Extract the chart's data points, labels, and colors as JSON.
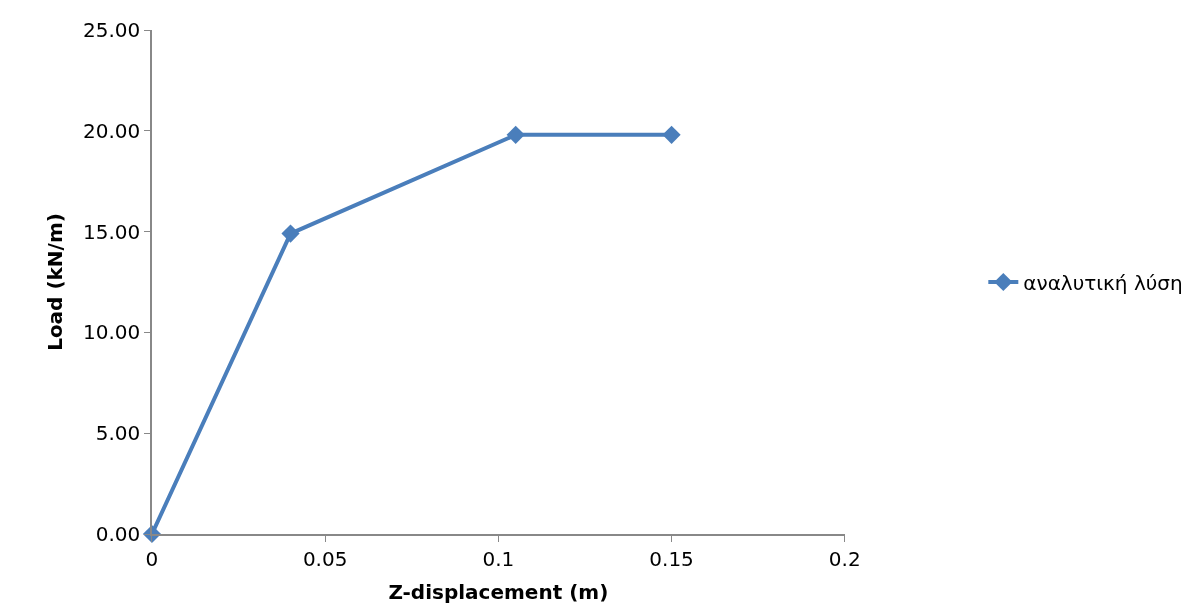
{
  "chart_data": {
    "type": "line",
    "xlabel": "Z-displacement (m)",
    "ylabel": "Load (kN/m)",
    "x": [
      0,
      0.04,
      0.105,
      0.15
    ],
    "series": [
      {
        "name": "αναλυτική λύση",
        "color": "#4a7ebb",
        "values": [
          0,
          14.9,
          19.8,
          19.8
        ]
      }
    ],
    "xlim": [
      0,
      0.2
    ],
    "xticks": [
      0,
      0.05,
      0.1,
      0.15,
      0.2
    ],
    "ylim": [
      0,
      25
    ],
    "yticks": [
      {
        "value": 0,
        "label": "0.00"
      },
      {
        "value": 5,
        "label": "5.00"
      },
      {
        "value": 10,
        "label": "10.00"
      },
      {
        "value": 15,
        "label": "15.00"
      },
      {
        "value": 20,
        "label": "20.00"
      },
      {
        "value": 25,
        "label": "25.00"
      }
    ],
    "grid": false,
    "legend": "right",
    "marker": "diamond",
    "line_style": "solid"
  }
}
